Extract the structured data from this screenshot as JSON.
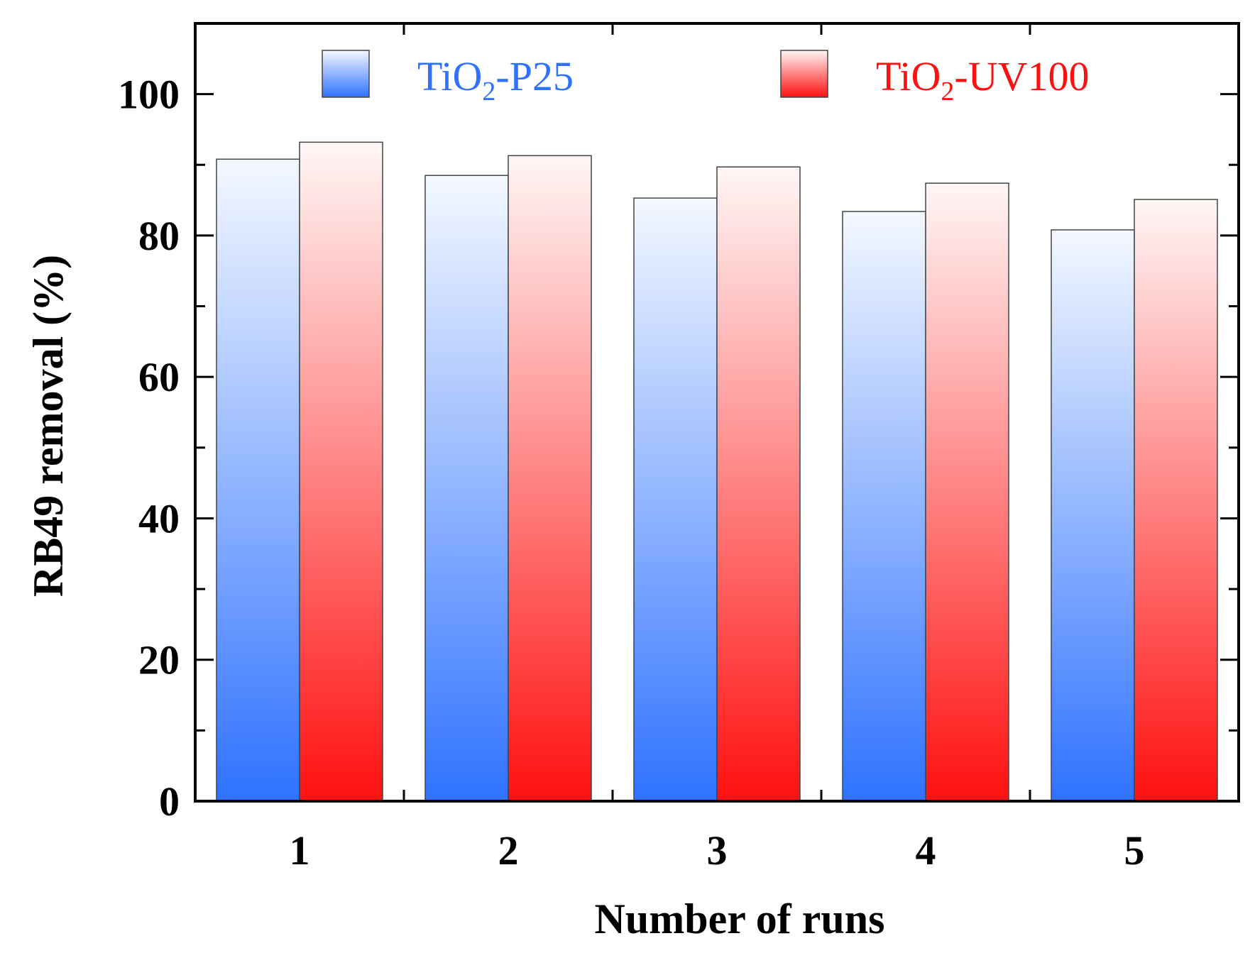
{
  "chart_data": {
    "type": "bar",
    "title": "",
    "xlabel": "Number of runs",
    "ylabel": "RB49 removal (%)",
    "categories": [
      "1",
      "2",
      "3",
      "4",
      "5"
    ],
    "ylim": [
      0,
      110
    ],
    "yticks": [
      0,
      20,
      40,
      60,
      80,
      100
    ],
    "yticklabels": [
      "0",
      "20",
      "40",
      "60",
      "80",
      "100"
    ],
    "grid": false,
    "legend_position": "top",
    "series": [
      {
        "name": "TiO2-P25",
        "legend_parts": {
          "base": "TiO",
          "sub": "2",
          "suffix": "-P25"
        },
        "color_top": "#f4f8ff",
        "color_bottom": "#2f72ff",
        "text_color": "#2f72ff",
        "values": [
          90.8,
          88.5,
          85.3,
          83.4,
          80.8
        ]
      },
      {
        "name": "TiO2-UV100",
        "legend_parts": {
          "base": "TiO",
          "sub": "2",
          "suffix": "-UV100"
        },
        "color_top": "#fff6f6",
        "color_bottom": "#ff1010",
        "text_color": "#ff1010",
        "values": [
          93.2,
          91.3,
          89.7,
          87.4,
          85.1
        ]
      }
    ]
  }
}
